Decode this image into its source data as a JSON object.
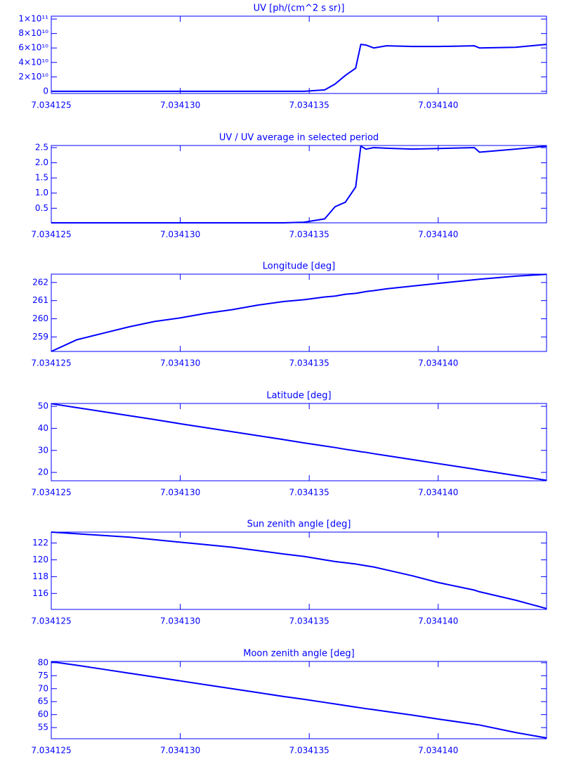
{
  "chart_data": [
    {
      "type": "line",
      "title": "UV [ph/(cm^2 s sr)]",
      "color": "#0000ff",
      "x": [
        7.034125,
        7.034126,
        7.034127,
        7.034128,
        7.034129,
        7.03413,
        7.034131,
        7.034132,
        7.034133,
        7.034134,
        7.0341348,
        7.0341356,
        7.034136,
        7.0341364,
        7.0341368,
        7.034137,
        7.0341372,
        7.0341375,
        7.034138,
        7.034139,
        7.03414,
        7.0341414,
        7.0341416,
        7.034143,
        7.0341442
      ],
      "values": [
        0,
        0,
        0,
        0,
        0,
        0,
        0,
        0,
        0,
        0,
        0,
        2000000000,
        10000000000,
        22000000000,
        32000000000,
        65000000000,
        64000000000,
        60000000000,
        63000000000,
        62000000000,
        62000000000,
        63000000000,
        60000000000,
        61000000000,
        65000000000
      ],
      "xlim": [
        7.034125,
        7.0341442
      ],
      "xticks": [
        7.034125,
        {
          "value": 7.03413,
          "label": "7.034130"
        },
        7.034135,
        {
          "value": 7.03414,
          "label": "7.034140"
        }
      ],
      "ylim": [
        -3000000000,
        104000000000
      ],
      "yticks": [
        {
          "value": 0,
          "label": "0"
        },
        {
          "value": 20000000000,
          "label": "2×10¹⁰"
        },
        {
          "value": 40000000000,
          "label": "4×10¹⁰"
        },
        {
          "value": 60000000000,
          "label": "6×10¹⁰"
        },
        {
          "value": 80000000000,
          "label": "8×10¹⁰"
        },
        {
          "value": 100000000000,
          "label": "1×10¹¹"
        }
      ]
    },
    {
      "type": "line",
      "title": "UV / UV average in selected period",
      "color": "#0000ff",
      "x": [
        7.034125,
        7.034126,
        7.034127,
        7.034128,
        7.034129,
        7.03413,
        7.034131,
        7.034132,
        7.034133,
        7.034134,
        7.0341348,
        7.0341356,
        7.034136,
        7.0341364,
        7.0341368,
        7.034137,
        7.0341372,
        7.0341375,
        7.034138,
        7.034139,
        7.03414,
        7.0341414,
        7.0341416,
        7.034143,
        7.0341442
      ],
      "values": [
        0.02,
        0.02,
        0.02,
        0.02,
        0.02,
        0.02,
        0.02,
        0.02,
        0.02,
        0.02,
        0.04,
        0.15,
        0.55,
        0.7,
        1.2,
        2.55,
        2.45,
        2.5,
        2.48,
        2.45,
        2.47,
        2.5,
        2.35,
        2.45,
        2.55
      ],
      "xlim": [
        7.034125,
        7.0341442
      ],
      "xticks": [
        7.034125,
        {
          "value": 7.03413,
          "label": "7.034130"
        },
        7.034135,
        {
          "value": 7.03414,
          "label": "7.034140"
        }
      ],
      "ylim": [
        0.02,
        2.57
      ],
      "yticks": [
        0.5,
        {
          "value": 1,
          "label": "1.0"
        },
        1.5,
        {
          "value": 2,
          "label": "2.0"
        },
        2.5
      ]
    },
    {
      "type": "line",
      "title": "Longitude [deg]",
      "color": "#0000ff",
      "x": [
        7.034125,
        7.034126,
        7.034127,
        7.034128,
        7.034129,
        7.03413,
        7.034131,
        7.034132,
        7.034133,
        7.034134,
        7.0341348,
        7.0341356,
        7.034136,
        7.0341364,
        7.0341368,
        7.034137,
        7.0341372,
        7.0341375,
        7.034138,
        7.034139,
        7.03414,
        7.0341414,
        7.0341416,
        7.034143,
        7.0341442
      ],
      "values": [
        258.2,
        258.85,
        259.2,
        259.55,
        259.85,
        260.05,
        260.3,
        260.5,
        260.75,
        260.95,
        261.05,
        261.2,
        261.25,
        261.35,
        261.4,
        261.45,
        261.5,
        261.55,
        261.65,
        261.8,
        261.95,
        262.15,
        262.18,
        262.35,
        262.45
      ],
      "xlim": [
        7.034125,
        7.0341442
      ],
      "xticks": [
        7.034125,
        {
          "value": 7.03413,
          "label": "7.034130"
        },
        7.034135,
        {
          "value": 7.03414,
          "label": "7.034140"
        }
      ],
      "ylim": [
        258.2,
        262.46
      ],
      "yticks": [
        259,
        260,
        261,
        262
      ]
    },
    {
      "type": "line",
      "title": "Latitude [deg]",
      "color": "#0000ff",
      "x": [
        7.034125,
        7.034126,
        7.034127,
        7.034128,
        7.034129,
        7.03413,
        7.034131,
        7.034132,
        7.034133,
        7.034134,
        7.0341348,
        7.0341356,
        7.034136,
        7.0341364,
        7.0341368,
        7.034137,
        7.0341372,
        7.0341375,
        7.034138,
        7.034139,
        7.03414,
        7.0341414,
        7.0341416,
        7.034143,
        7.0341442
      ],
      "values": [
        51.2,
        49.4,
        47.6,
        45.8,
        44.0,
        42.1,
        40.3,
        38.5,
        36.7,
        34.9,
        33.4,
        32.0,
        31.3,
        30.5,
        29.8,
        29.4,
        29.1,
        28.5,
        27.6,
        25.8,
        24.0,
        21.5,
        21.1,
        18.6,
        16.4
      ],
      "xlim": [
        7.034125,
        7.0341442
      ],
      "xticks": [
        7.034125,
        {
          "value": 7.03413,
          "label": "7.034130"
        },
        7.034135,
        {
          "value": 7.03414,
          "label": "7.034140"
        }
      ],
      "ylim": [
        16.2,
        51.3
      ],
      "yticks": [
        20,
        30,
        40,
        50
      ]
    },
    {
      "type": "line",
      "title": "Sun zenith angle [deg]",
      "color": "#0000ff",
      "x": [
        7.034125,
        7.034126,
        7.034127,
        7.034128,
        7.034129,
        7.03413,
        7.034131,
        7.034132,
        7.034133,
        7.034134,
        7.0341348,
        7.0341356,
        7.034136,
        7.0341364,
        7.0341368,
        7.034137,
        7.0341372,
        7.0341375,
        7.034138,
        7.034139,
        7.03414,
        7.0341414,
        7.0341416,
        7.034143,
        7.0341442
      ],
      "values": [
        123.3,
        123.1,
        122.9,
        122.7,
        122.4,
        122.1,
        121.8,
        121.5,
        121.1,
        120.7,
        120.4,
        120.0,
        119.8,
        119.65,
        119.5,
        119.4,
        119.3,
        119.15,
        118.8,
        118.1,
        117.3,
        116.4,
        116.2,
        115.2,
        114.2
      ],
      "xlim": [
        7.034125,
        7.0341442
      ],
      "xticks": [
        7.034125,
        {
          "value": 7.03413,
          "label": "7.034130"
        },
        7.034135,
        {
          "value": 7.03414,
          "label": "7.034140"
        }
      ],
      "ylim": [
        114.1,
        123.3
      ],
      "yticks": [
        116,
        118,
        120,
        122
      ]
    },
    {
      "type": "line",
      "title": "Moon zenith angle [deg]",
      "color": "#0000ff",
      "x": [
        7.034125,
        7.034126,
        7.034127,
        7.034128,
        7.034129,
        7.03413,
        7.034131,
        7.034132,
        7.034133,
        7.034134,
        7.0341348,
        7.0341356,
        7.034136,
        7.0341364,
        7.0341368,
        7.034137,
        7.0341372,
        7.0341375,
        7.034138,
        7.034139,
        7.03414,
        7.0341414,
        7.0341416,
        7.034143,
        7.0341442
      ],
      "values": [
        80.4,
        79.0,
        77.5,
        76.0,
        74.5,
        73.0,
        71.5,
        70.0,
        68.5,
        67.0,
        65.9,
        64.7,
        64.1,
        63.5,
        62.9,
        62.6,
        62.3,
        61.9,
        61.2,
        59.8,
        58.3,
        56.3,
        56.0,
        53.1,
        51.0
      ],
      "xlim": [
        7.034125,
        7.0341442
      ],
      "xticks": [
        7.034125,
        {
          "value": 7.03413,
          "label": "7.034130"
        },
        7.034135,
        {
          "value": 7.03414,
          "label": "7.034140"
        }
      ],
      "ylim": [
        50.7,
        80.5
      ],
      "yticks": [
        55,
        60,
        65,
        70,
        75,
        80
      ]
    }
  ]
}
